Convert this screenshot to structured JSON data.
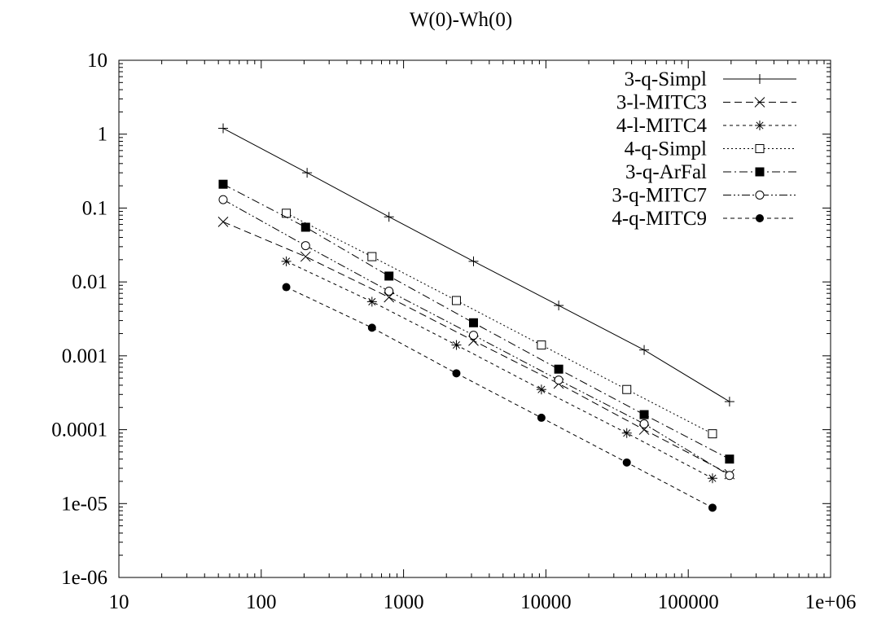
{
  "chart_data": {
    "type": "line",
    "title": "W(0)-Wh(0)",
    "xlabel": "",
    "ylabel": "",
    "xscale": "log",
    "yscale": "log",
    "xlim": [
      10,
      1000000
    ],
    "ylim": [
      1e-06,
      10
    ],
    "grid": false,
    "legend_position": "top-right",
    "x_tick_labels": [
      "10",
      "100",
      "1000",
      "10000",
      "100000",
      "1e+06"
    ],
    "y_tick_labels": [
      "1e-06",
      "1e-05",
      "0.0001",
      "0.001",
      "0.01",
      "0.1",
      "1",
      "10"
    ],
    "series": [
      {
        "name": "3-q-Simpl",
        "marker": "plus",
        "dash": "solid",
        "points": [
          [
            54,
            1.2
          ],
          [
            210,
            0.3
          ],
          [
            790,
            0.076
          ],
          [
            3100,
            0.019
          ],
          [
            12300,
            0.0048
          ],
          [
            49000,
            0.0012
          ],
          [
            195000,
            0.00024
          ]
        ]
      },
      {
        "name": "3-l-MITC3",
        "marker": "x",
        "dash": "dashed",
        "points": [
          [
            54,
            0.065
          ],
          [
            205,
            0.022
          ],
          [
            790,
            0.0062
          ],
          [
            3100,
            0.0016
          ],
          [
            12300,
            0.00042
          ],
          [
            49000,
            0.0001
          ],
          [
            195000,
            2.5e-05
          ]
        ]
      },
      {
        "name": "4-l-MITC4",
        "marker": "star",
        "dash": "dotted-dash",
        "points": [
          [
            150,
            0.019
          ],
          [
            600,
            0.0054
          ],
          [
            2350,
            0.0014
          ],
          [
            9300,
            0.00035
          ],
          [
            37000,
            9e-05
          ],
          [
            148000,
            2.2e-05
          ]
        ]
      },
      {
        "name": "4-q-Simpl",
        "marker": "open-square",
        "dash": "dotted",
        "points": [
          [
            150,
            0.085
          ],
          [
            600,
            0.022
          ],
          [
            2350,
            0.0056
          ],
          [
            9300,
            0.0014
          ],
          [
            37000,
            0.00035
          ],
          [
            148000,
            8.8e-05
          ]
        ]
      },
      {
        "name": "3-q-ArFal",
        "marker": "filled-square",
        "dash": "dash-dot",
        "points": [
          [
            54,
            0.21
          ],
          [
            205,
            0.055
          ],
          [
            790,
            0.012
          ],
          [
            3100,
            0.0028
          ],
          [
            12300,
            0.00066
          ],
          [
            49000,
            0.00016
          ],
          [
            195000,
            4e-05
          ]
        ]
      },
      {
        "name": "3-q-MITC7",
        "marker": "open-circle",
        "dash": "dash-dot-dot",
        "points": [
          [
            54,
            0.13
          ],
          [
            205,
            0.031
          ],
          [
            790,
            0.0075
          ],
          [
            3100,
            0.0019
          ],
          [
            12300,
            0.00047
          ],
          [
            49000,
            0.00012
          ],
          [
            195000,
            2.4e-05
          ]
        ]
      },
      {
        "name": "4-q-MITC9",
        "marker": "filled-circle",
        "dash": "short-dash",
        "points": [
          [
            150,
            0.0085
          ],
          [
            600,
            0.0024
          ],
          [
            2350,
            0.00058
          ],
          [
            9300,
            0.000145
          ],
          [
            37000,
            3.6e-05
          ],
          [
            148000,
            8.8e-06
          ]
        ]
      }
    ]
  }
}
